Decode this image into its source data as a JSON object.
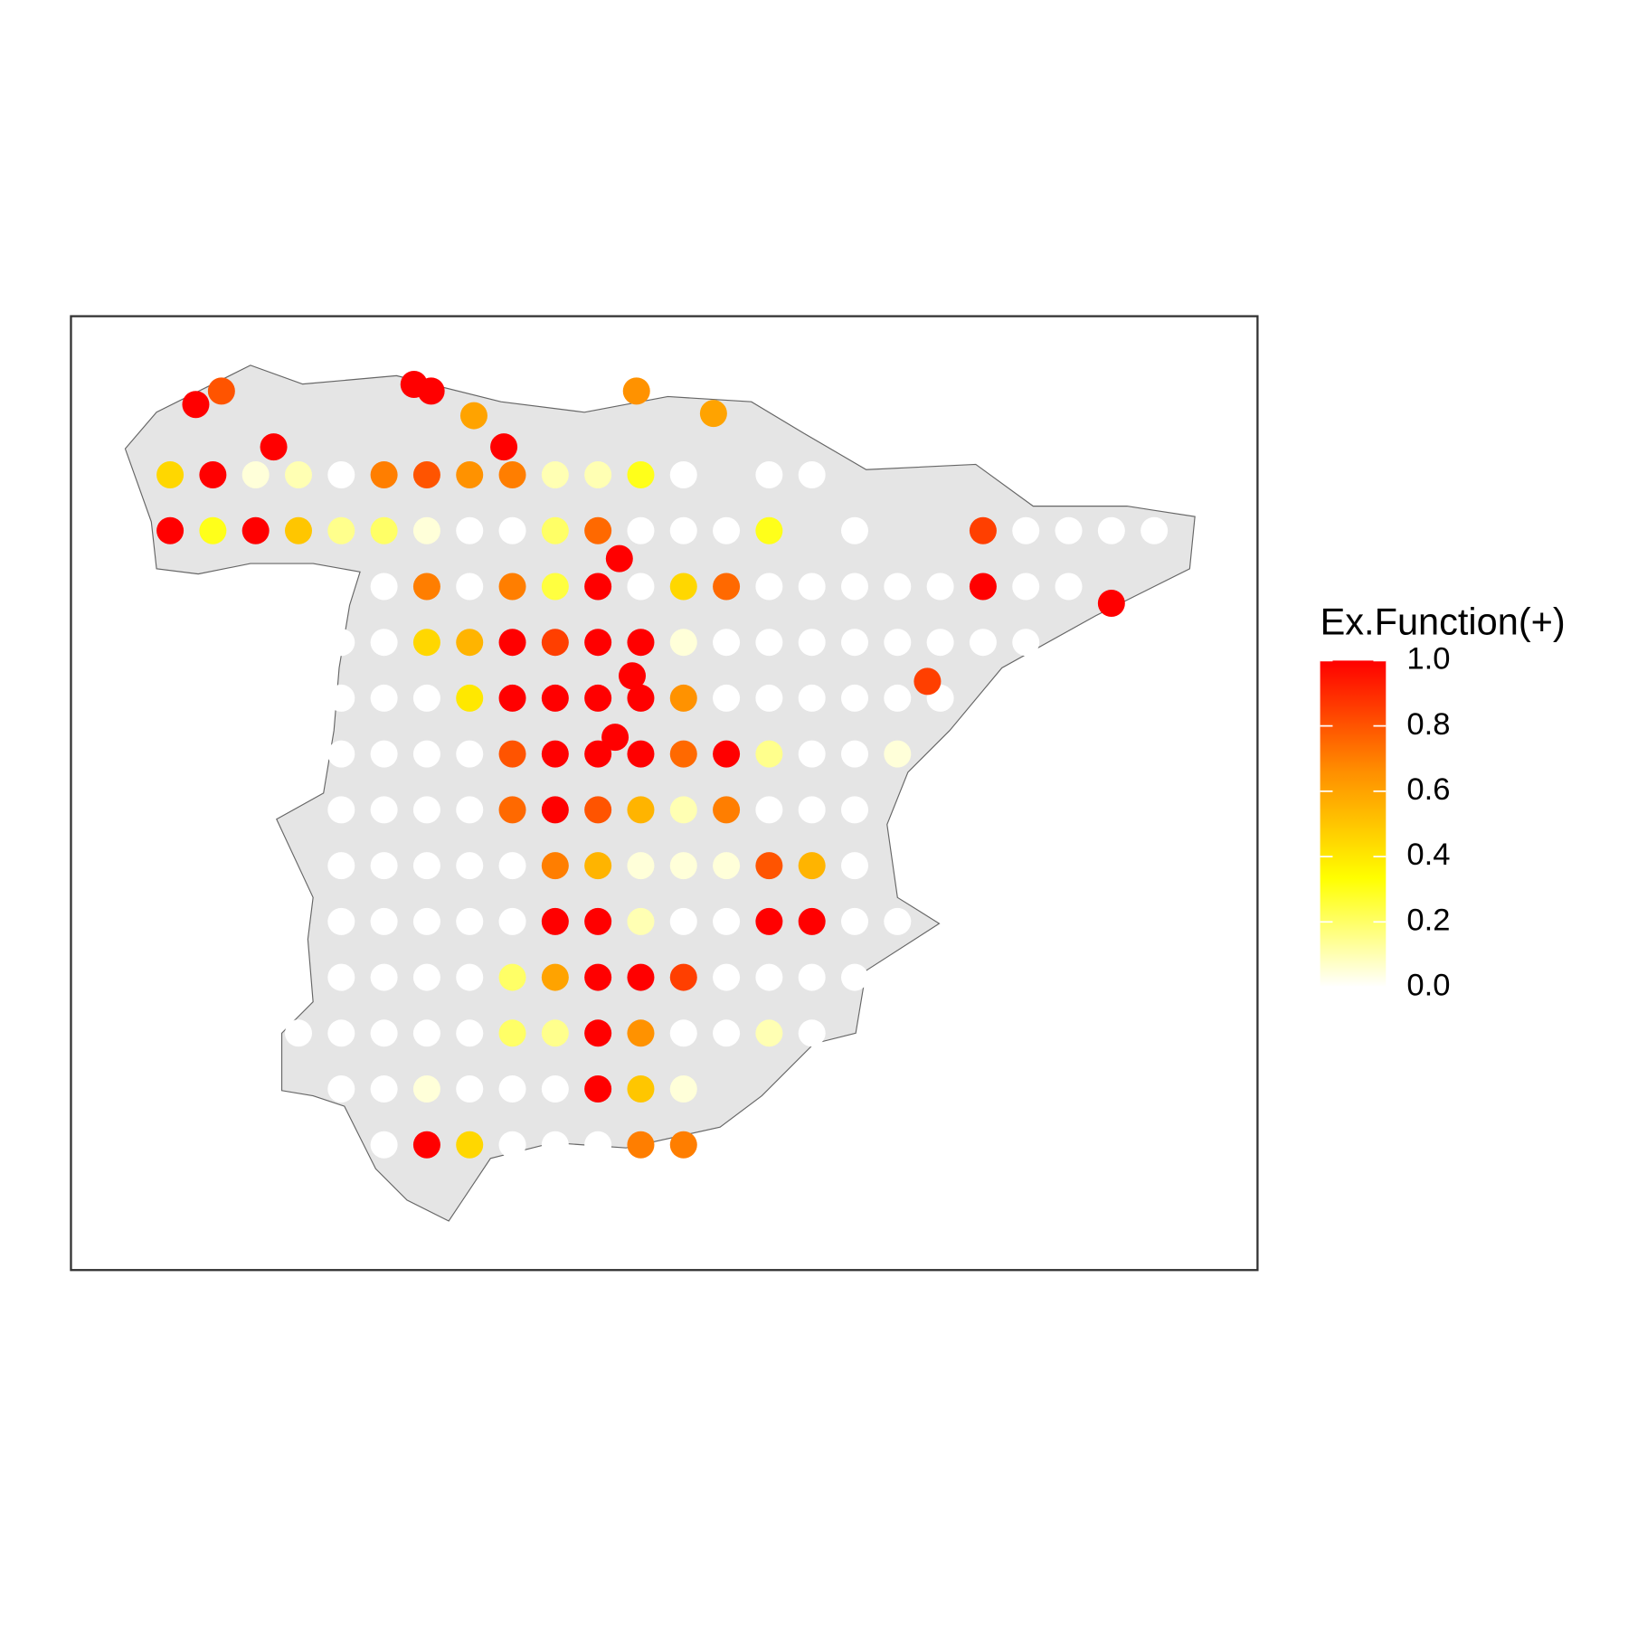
{
  "chart_data": {
    "type": "point-map",
    "legend_title": "Ex.Function(+)",
    "scale_limits": [
      0,
      1
    ],
    "colors": [
      "#ffffff",
      "#ffff00",
      "#ff8c00",
      "#ff0000"
    ],
    "legend_ticks": [
      {
        "value": 0,
        "label": "0.0"
      },
      {
        "value": 0.2,
        "label": "0.2"
      },
      {
        "value": 0.4,
        "label": "0.4"
      },
      {
        "value": 0.6,
        "label": "0.6"
      },
      {
        "value": 0.8,
        "label": "0.8"
      },
      {
        "value": 1,
        "label": "1.0"
      }
    ],
    "x": [
      -8.75,
      -8.25,
      -7.75,
      -7.25,
      -6.75,
      -6.25,
      -5.75,
      -5.25,
      -4.75,
      -4.25,
      -3.75,
      -3.25,
      -2.75,
      -1.75,
      -1.25,
      -8.75,
      -8.25,
      -7.75,
      -7.25,
      -6.75,
      -6.25,
      -5.75,
      -5.25,
      -4.75,
      -4.25,
      -3.75,
      -3.25,
      -2.75,
      -2.25,
      -1.75,
      -0.75,
      0.75,
      1.25,
      1.75,
      2.25,
      2.75,
      -6.25,
      -5.75,
      -5.25,
      -4.75,
      -4.25,
      -3.75,
      -3.25,
      -2.75,
      -2.25,
      -1.75,
      -1.25,
      -0.75,
      -0.25,
      0.25,
      0.75,
      1.25,
      1.75,
      -6.75,
      -6.25,
      -5.75,
      -5.25,
      -4.75,
      -4.25,
      -3.75,
      -3.25,
      -2.75,
      -2.25,
      -1.75,
      -1.25,
      -0.75,
      -0.25,
      0.25,
      0.75,
      1.25,
      -6.75,
      -6.25,
      -5.75,
      -5.25,
      -4.75,
      -4.25,
      -3.75,
      -3.25,
      -2.75,
      -2.25,
      -1.75,
      -1.25,
      -0.75,
      -0.25,
      0.25,
      -6.75,
      -6.25,
      -5.75,
      -5.25,
      -4.75,
      -4.25,
      -3.75,
      -3.25,
      -2.75,
      -2.25,
      -1.75,
      -1.25,
      -0.75,
      -0.25,
      -6.75,
      -6.25,
      -5.75,
      -5.25,
      -4.75,
      -4.25,
      -3.75,
      -3.25,
      -2.75,
      -2.25,
      -1.75,
      -1.25,
      -0.75,
      -6.75,
      -6.25,
      -5.75,
      -5.25,
      -4.75,
      -4.25,
      -3.75,
      -3.25,
      -2.75,
      -2.25,
      -1.75,
      -1.25,
      -0.75,
      -6.75,
      -6.25,
      -5.75,
      -5.25,
      -4.75,
      -4.25,
      -3.75,
      -3.25,
      -2.75,
      -2.25,
      -1.75,
      -1.25,
      -0.75,
      -0.25,
      -6.75,
      -6.25,
      -5.75,
      -5.25,
      -4.75,
      -4.25,
      -3.75,
      -3.25,
      -2.75,
      -2.25,
      -1.75,
      -1.25,
      -0.75,
      -7.25,
      -6.75,
      -6.25,
      -5.75,
      -5.25,
      -4.75,
      -4.25,
      -3.75,
      -3.25,
      -2.75,
      -2.25,
      -1.75,
      -1.25,
      -6.75,
      -6.25,
      -5.75,
      -5.25,
      -4.75,
      -4.25,
      -3.75,
      -3.25,
      -2.75,
      -6.25,
      -5.75,
      -5.25,
      -4.75,
      -4.25,
      -3.75,
      -3.25,
      -2.75,
      -8.45,
      -8.15,
      -7.54,
      -5.9,
      -5.7,
      -5.2,
      -3.3,
      -2.4,
      -4.85,
      -3.35,
      -3.55,
      2.25,
      -3.5,
      0.1
    ],
    "y": [
      42.75,
      42.75,
      42.75,
      42.75,
      42.75,
      42.75,
      42.75,
      42.75,
      42.75,
      42.75,
      42.75,
      42.75,
      42.75,
      42.75,
      42.75,
      42.25,
      42.25,
      42.25,
      42.25,
      42.25,
      42.25,
      42.25,
      42.25,
      42.25,
      42.25,
      42.25,
      42.25,
      42.25,
      42.25,
      42.25,
      42.25,
      42.25,
      42.25,
      42.25,
      42.25,
      42.25,
      41.75,
      41.75,
      41.75,
      41.75,
      41.75,
      41.75,
      41.75,
      41.75,
      41.75,
      41.75,
      41.75,
      41.75,
      41.75,
      41.75,
      41.75,
      41.75,
      41.75,
      41.25,
      41.25,
      41.25,
      41.25,
      41.25,
      41.25,
      41.25,
      41.25,
      41.25,
      41.25,
      41.25,
      41.25,
      41.25,
      41.25,
      41.25,
      41.25,
      41.25,
      40.75,
      40.75,
      40.75,
      40.75,
      40.75,
      40.75,
      40.75,
      40.75,
      40.75,
      40.75,
      40.75,
      40.75,
      40.75,
      40.75,
      40.75,
      40.25,
      40.25,
      40.25,
      40.25,
      40.25,
      40.25,
      40.25,
      40.25,
      40.25,
      40.25,
      40.25,
      40.25,
      40.25,
      40.25,
      39.75,
      39.75,
      39.75,
      39.75,
      39.75,
      39.75,
      39.75,
      39.75,
      39.75,
      39.75,
      39.75,
      39.75,
      39.75,
      39.25,
      39.25,
      39.25,
      39.25,
      39.25,
      39.25,
      39.25,
      39.25,
      39.25,
      39.25,
      39.25,
      39.25,
      39.25,
      38.75,
      38.75,
      38.75,
      38.75,
      38.75,
      38.75,
      38.75,
      38.75,
      38.75,
      38.75,
      38.75,
      38.75,
      38.75,
      38.75,
      38.25,
      38.25,
      38.25,
      38.25,
      38.25,
      38.25,
      38.25,
      38.25,
      38.25,
      38.25,
      38.25,
      38.25,
      38.25,
      37.75,
      37.75,
      37.75,
      37.75,
      37.75,
      37.75,
      37.75,
      37.75,
      37.75,
      37.75,
      37.75,
      37.75,
      37.75,
      37.25,
      37.25,
      37.25,
      37.25,
      37.25,
      37.25,
      37.25,
      37.25,
      37.25,
      36.75,
      36.75,
      36.75,
      36.75,
      36.75,
      36.75,
      36.75,
      36.75,
      43.38,
      43.5,
      43.0,
      43.56,
      43.5,
      43.28,
      43.5,
      43.3,
      43.0,
      40.95,
      40.4,
      41.6,
      42.0,
      40.9
    ],
    "values": [
      0.45,
      1,
      0.05,
      0.1,
      0,
      0.7,
      0.8,
      0.65,
      0.7,
      0.1,
      0.1,
      0.3,
      0,
      0,
      0,
      1,
      0.3,
      1,
      0.5,
      0.15,
      0.2,
      0.05,
      0,
      0,
      0.2,
      0.75,
      0,
      0,
      0,
      0.3,
      0,
      0.85,
      0,
      0,
      0,
      0,
      0,
      0.7,
      0,
      0.7,
      0.25,
      1,
      0,
      0.45,
      0.75,
      0,
      0,
      0,
      0,
      0,
      1,
      0,
      0,
      0,
      0,
      0.45,
      0.55,
      1,
      0.85,
      1,
      1,
      0.05,
      0,
      0,
      0,
      0,
      0,
      0,
      0,
      0,
      0,
      0,
      0,
      0.4,
      1,
      1,
      1,
      1,
      0.65,
      0,
      0,
      0,
      0,
      0,
      0,
      0,
      0,
      0,
      0,
      0.8,
      1,
      1,
      1,
      0.75,
      1,
      0.15,
      0,
      0,
      0.05,
      0,
      0,
      0,
      0,
      0.75,
      1,
      0.8,
      0.55,
      0.1,
      0.7,
      0,
      0,
      0,
      0,
      0,
      0,
      0,
      0,
      0.7,
      0.55,
      0.05,
      0.05,
      0.05,
      0.8,
      0.55,
      0,
      0,
      0,
      0,
      0,
      0,
      1,
      1,
      0.1,
      0,
      0,
      1,
      1,
      0,
      0,
      0,
      0,
      0,
      0,
      0.2,
      0.6,
      1,
      1,
      0.85,
      0,
      0,
      0,
      0,
      0,
      0,
      0,
      0,
      0,
      0.2,
      0.15,
      1,
      0.65,
      0,
      0,
      0.1,
      0,
      0,
      0,
      0.05,
      0,
      0,
      0,
      1,
      0.5,
      0.05,
      0,
      1,
      0.45,
      0,
      0,
      0,
      0.7,
      0.7,
      1,
      0.8,
      1,
      1,
      1,
      0.6,
      0.65,
      0.6,
      1,
      1,
      1,
      1,
      1,
      0.85
    ]
  }
}
